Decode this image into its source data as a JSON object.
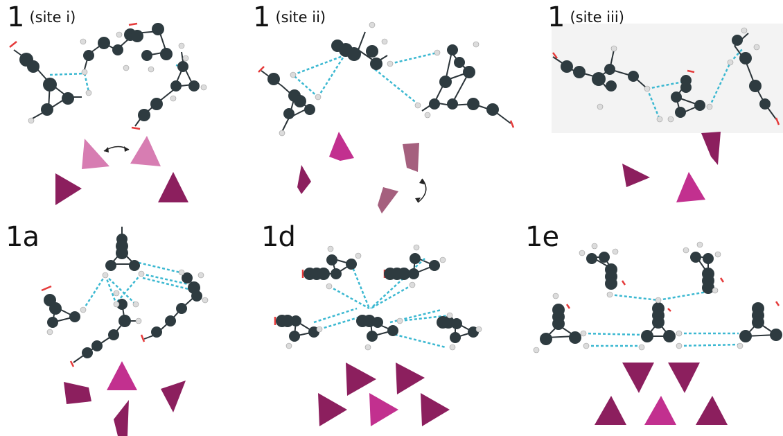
{
  "panels": [
    {
      "label": "1",
      "sublabel": "(site i)"
    },
    {
      "label": "1",
      "sublabel": "(site ii)"
    },
    {
      "label": "1",
      "sublabel": "(site iii)"
    },
    {
      "label": "1a",
      "sublabel": ""
    },
    {
      "label": "1d",
      "sublabel": ""
    },
    {
      "label": "1e",
      "sublabel": ""
    }
  ],
  "colors": {
    "atom": "#2e3b40",
    "hydrogen": "#dcdcdc",
    "contact": "#3bb8d1",
    "bond": "#2a3338",
    "terminal": "#e53a3a",
    "triangle_dark": "#8c1f5e",
    "triangle_bright": "#c2308f",
    "triangle_light": "#d77db2",
    "triangle_grey": "#a5607e"
  },
  "icons": {
    "rotation_arrow": "double-headed-curved-arrow"
  }
}
